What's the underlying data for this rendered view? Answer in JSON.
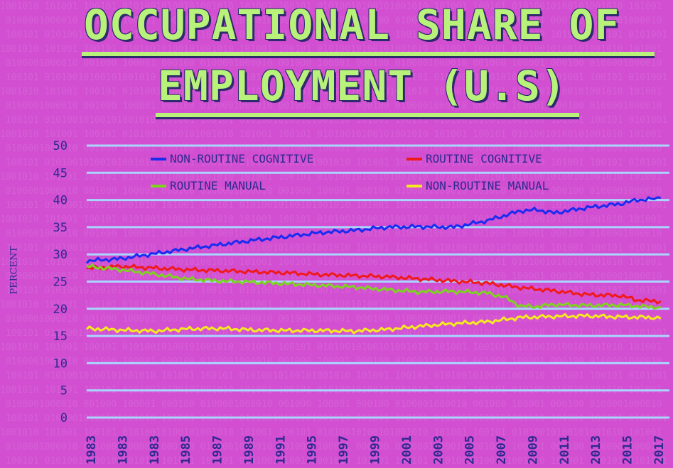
{
  "chart_data": {
    "type": "line",
    "title_line1": "OCCUPATIONAL SHARE OF",
    "title_line2": "EMPLOYMENT (U.S)",
    "ylabel": "PERCENT",
    "xlabel": "",
    "ylim": [
      0,
      50
    ],
    "yticks": [
      0,
      5,
      10,
      15,
      20,
      25,
      30,
      35,
      40,
      45,
      50
    ],
    "xtick_labels": [
      "1983",
      "1983",
      "1983",
      "1985",
      "1987",
      "1989",
      "1991",
      "1995",
      "1997",
      "1999",
      "2001",
      "2003",
      "2005",
      "2007",
      "2009",
      "2011",
      "2013",
      "2015",
      "2017"
    ],
    "x_range": [
      1983,
      2017.5
    ],
    "grid": true,
    "legend_position": "top",
    "series": [
      {
        "name": "NON-ROUTINE COGNITIVE",
        "color": "#1a2cf0",
        "points": [
          [
            1983,
            28.8
          ],
          [
            1985,
            29.2
          ],
          [
            1987,
            30.1
          ],
          [
            1989,
            31.0
          ],
          [
            1991,
            31.8
          ],
          [
            1993,
            32.6
          ],
          [
            1995,
            33.3
          ],
          [
            1997,
            34.0
          ],
          [
            1999,
            34.4
          ],
          [
            2001,
            35.0
          ],
          [
            2003,
            35.1
          ],
          [
            2005,
            35.0
          ],
          [
            2007,
            36.2
          ],
          [
            2009,
            38.0
          ],
          [
            2010,
            38.2
          ],
          [
            2011,
            37.6
          ],
          [
            2013,
            38.6
          ],
          [
            2015,
            39.3
          ],
          [
            2016,
            40.0
          ],
          [
            2017,
            40.2
          ],
          [
            2017.4,
            40.4
          ]
        ]
      },
      {
        "name": "ROUTINE COGNITIVE",
        "color": "#f01a1a",
        "points": [
          [
            1983,
            27.4
          ],
          [
            1985,
            27.8
          ],
          [
            1987,
            27.5
          ],
          [
            1989,
            27.2
          ],
          [
            1991,
            27.0
          ],
          [
            1993,
            26.8
          ],
          [
            1995,
            26.6
          ],
          [
            1997,
            26.3
          ],
          [
            1999,
            26.1
          ],
          [
            2001,
            25.9
          ],
          [
            2003,
            25.5
          ],
          [
            2005,
            25.1
          ],
          [
            2007,
            24.7
          ],
          [
            2009,
            23.9
          ],
          [
            2011,
            23.3
          ],
          [
            2013,
            22.6
          ],
          [
            2015,
            22.4
          ],
          [
            2016,
            21.6
          ],
          [
            2017,
            21.4
          ],
          [
            2017.4,
            21.4
          ]
        ]
      },
      {
        "name": "ROUTINE MANUAL",
        "color": "#7ed321",
        "points": [
          [
            1983,
            27.8
          ],
          [
            1985,
            27.2
          ],
          [
            1987,
            26.4
          ],
          [
            1989,
            25.5
          ],
          [
            1991,
            25.1
          ],
          [
            1993,
            24.9
          ],
          [
            1995,
            24.6
          ],
          [
            1997,
            24.3
          ],
          [
            1999,
            24.0
          ],
          [
            2001,
            23.5
          ],
          [
            2003,
            23.1
          ],
          [
            2005,
            23.2
          ],
          [
            2007,
            22.9
          ],
          [
            2008,
            22.2
          ],
          [
            2009,
            20.5
          ],
          [
            2010,
            20.4
          ],
          [
            2011,
            20.8
          ],
          [
            2013,
            20.6
          ],
          [
            2015,
            20.7
          ],
          [
            2017,
            20.3
          ],
          [
            2017.4,
            20.3
          ]
        ]
      },
      {
        "name": "NON-ROUTINE MANUAL",
        "color": "#f5ea1f",
        "points": [
          [
            1983,
            16.4
          ],
          [
            1985,
            16.1
          ],
          [
            1987,
            15.9
          ],
          [
            1989,
            16.3
          ],
          [
            1991,
            16.4
          ],
          [
            1993,
            16.1
          ],
          [
            1995,
            16.0
          ],
          [
            1997,
            16.0
          ],
          [
            1999,
            15.9
          ],
          [
            2001,
            16.2
          ],
          [
            2003,
            16.8
          ],
          [
            2005,
            17.3
          ],
          [
            2007,
            17.6
          ],
          [
            2009,
            18.4
          ],
          [
            2011,
            18.6
          ],
          [
            2013,
            18.7
          ],
          [
            2015,
            18.5
          ],
          [
            2017,
            18.4
          ],
          [
            2017.4,
            18.2
          ]
        ]
      }
    ]
  }
}
